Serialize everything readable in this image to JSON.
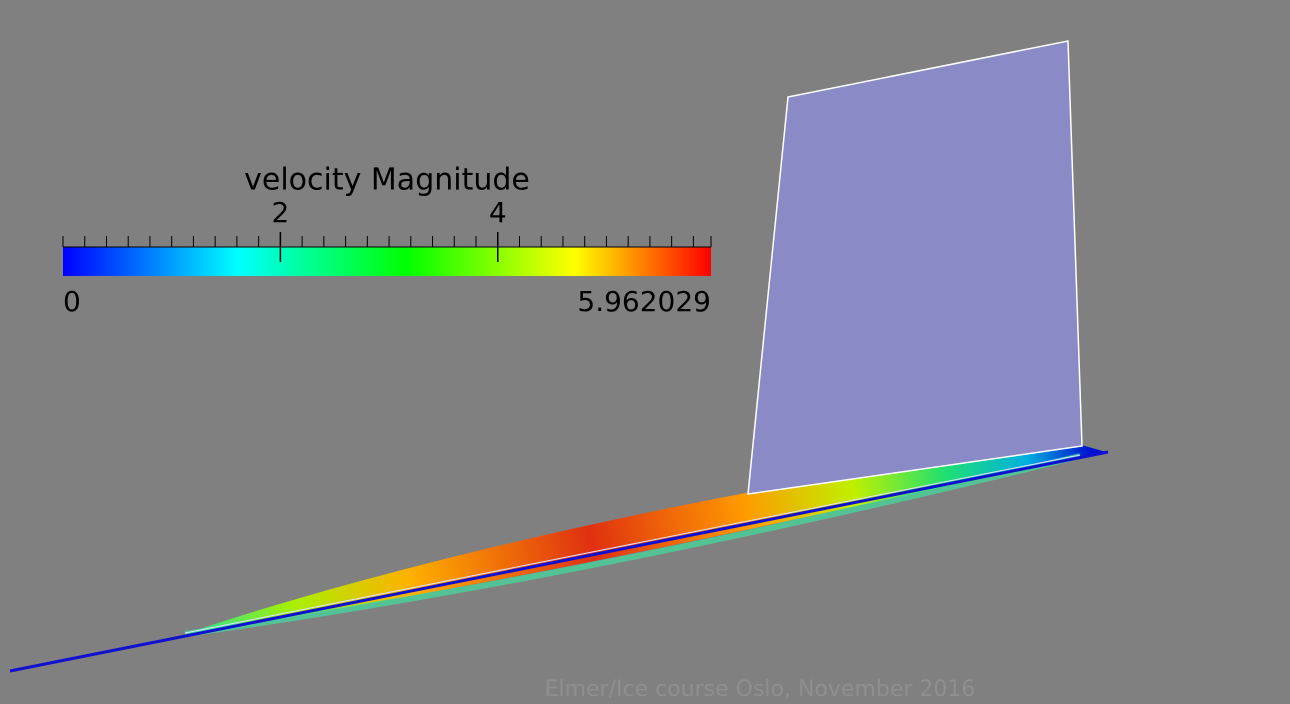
{
  "colorbar": {
    "title": "velocity Magnitude",
    "ticks": [
      2,
      4
    ],
    "min": 0,
    "max": 5.962029
  },
  "footer": "Elmer/Ice course Oslo, November 2016"
}
